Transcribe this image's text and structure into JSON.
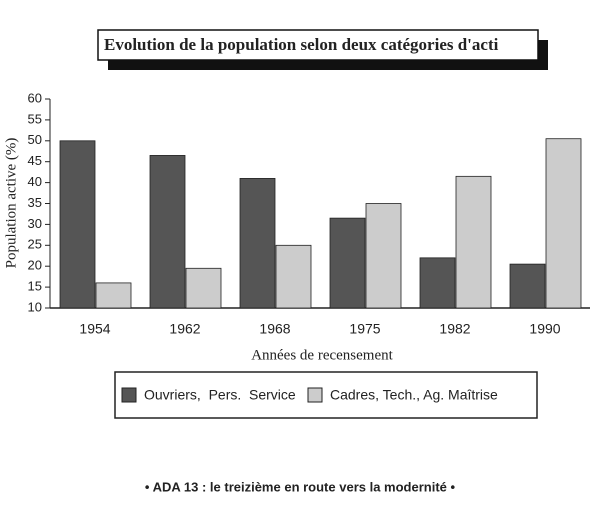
{
  "chart_data": {
    "type": "bar",
    "title": "Evolution de la population selon deux catégories d'acti",
    "xlabel": "Années de recensement",
    "ylabel": "Population active (%)",
    "categories": [
      "1954",
      "1962",
      "1968",
      "1975",
      "1982",
      "1990"
    ],
    "series": [
      {
        "name": "Ouvriers,  Pers.  Service",
        "color": "#555555",
        "values": [
          50,
          46.5,
          41,
          31.5,
          22,
          20.5
        ]
      },
      {
        "name": "Cadres, Tech., Ag. Maîtrise",
        "color": "#cccccc",
        "values": [
          16,
          19.5,
          25,
          35,
          41.5,
          50.5
        ]
      }
    ],
    "ylim": [
      10,
      60
    ],
    "yticks": [
      10,
      15,
      20,
      25,
      30,
      35,
      40,
      45,
      50,
      55,
      60
    ],
    "legend": "bottom"
  },
  "footer": "• ADA  13 : le treizième en route vers la modernité •"
}
